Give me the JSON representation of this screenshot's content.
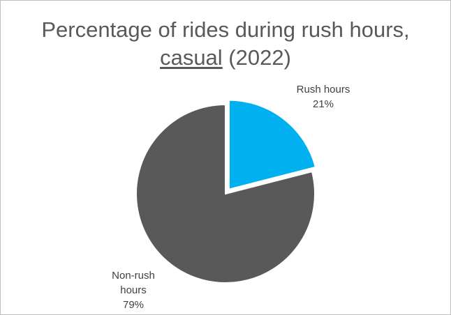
{
  "chart_data": {
    "type": "pie",
    "title": {
      "line1": "Percentage of rides during rush hours,",
      "line2_underlined": "casual",
      "line2_rest": " (2022)"
    },
    "slices": [
      {
        "label": "Rush hours",
        "value": 21,
        "value_label": "21%",
        "color": "#00b0f0",
        "exploded": true
      },
      {
        "label": "Non-rush hours",
        "label_lines": [
          "Non-rush",
          "hours"
        ],
        "value": 79,
        "value_label": "79%",
        "color": "#595959",
        "exploded": false
      }
    ]
  }
}
